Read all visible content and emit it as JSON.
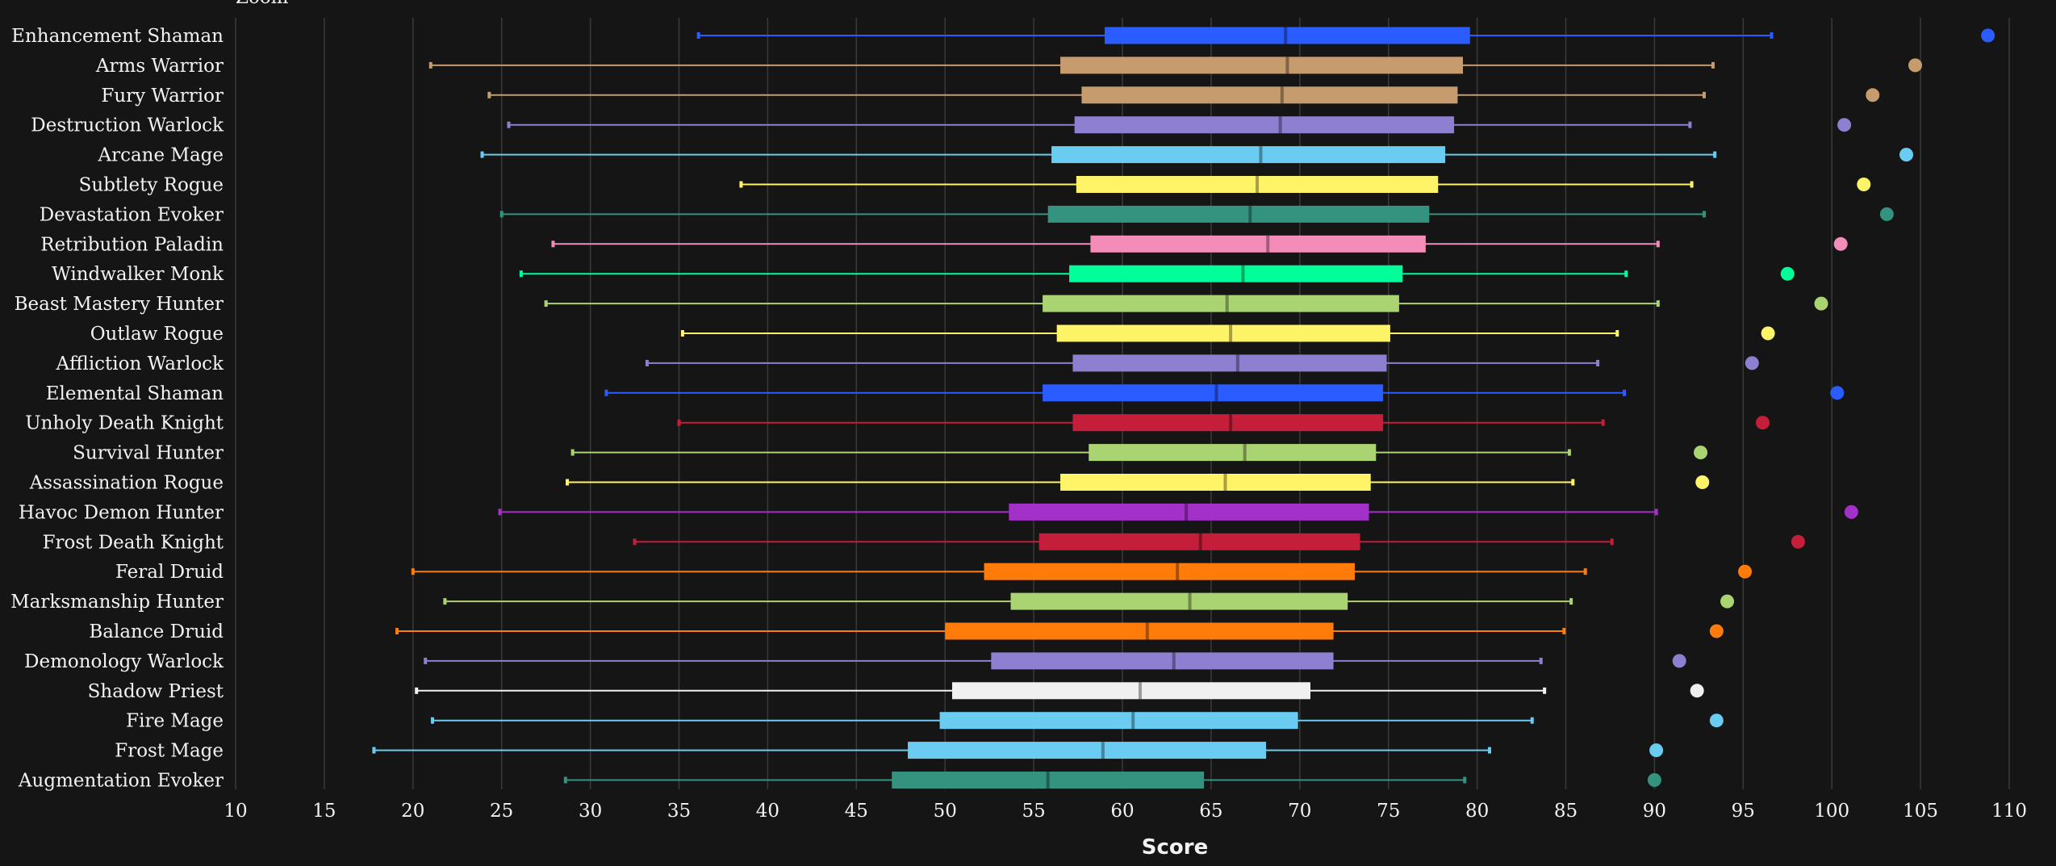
{
  "chart_data": {
    "type": "box",
    "xlabel": "Score",
    "xlim": [
      10,
      111
    ],
    "x_ticks": [
      10,
      15,
      20,
      25,
      30,
      35,
      40,
      45,
      50,
      55,
      60,
      65,
      70,
      75,
      80,
      85,
      90,
      95,
      100,
      105,
      110
    ],
    "grid": "vertical",
    "top_clipped_text": "Zoom",
    "series": [
      {
        "name": "Enhancement Shaman",
        "color": "#2a5cff",
        "min": 36.1,
        "q1": 59.0,
        "median": 69.2,
        "q3": 79.6,
        "max": 96.6,
        "outlier": 108.8
      },
      {
        "name": "Arms Warrior",
        "color": "#c69b6d",
        "min": 21.0,
        "q1": 56.5,
        "median": 69.3,
        "q3": 79.2,
        "max": 93.3,
        "outlier": 104.7
      },
      {
        "name": "Fury Warrior",
        "color": "#c69b6d",
        "min": 24.3,
        "q1": 57.7,
        "median": 69.0,
        "q3": 78.9,
        "max": 92.8,
        "outlier": 102.3
      },
      {
        "name": "Destruction Warlock",
        "color": "#8f7fd0",
        "min": 25.4,
        "q1": 57.3,
        "median": 68.9,
        "q3": 78.7,
        "max": 92.0,
        "outlier": 100.7
      },
      {
        "name": "Arcane Mage",
        "color": "#69ccf0",
        "min": 23.9,
        "q1": 56.0,
        "median": 67.8,
        "q3": 78.2,
        "max": 93.4,
        "outlier": 104.2
      },
      {
        "name": "Subtlety Rogue",
        "color": "#fff468",
        "min": 38.5,
        "q1": 57.4,
        "median": 67.6,
        "q3": 77.8,
        "max": 92.1,
        "outlier": 101.8
      },
      {
        "name": "Devastation Evoker",
        "color": "#33937f",
        "min": 25.0,
        "q1": 55.8,
        "median": 67.2,
        "q3": 77.3,
        "max": 92.8,
        "outlier": 103.1
      },
      {
        "name": "Retribution Paladin",
        "color": "#f48cba",
        "min": 27.9,
        "q1": 58.2,
        "median": 68.2,
        "q3": 77.1,
        "max": 90.2,
        "outlier": 100.5
      },
      {
        "name": "Windwalker Monk",
        "color": "#00ff98",
        "min": 26.1,
        "q1": 57.0,
        "median": 66.8,
        "q3": 75.8,
        "max": 88.4,
        "outlier": 97.5
      },
      {
        "name": "Beast Mastery Hunter",
        "color": "#aad372",
        "min": 27.5,
        "q1": 55.5,
        "median": 65.9,
        "q3": 75.6,
        "max": 90.2,
        "outlier": 99.4
      },
      {
        "name": "Outlaw Rogue",
        "color": "#fff468",
        "min": 35.2,
        "q1": 56.3,
        "median": 66.1,
        "q3": 75.1,
        "max": 87.9,
        "outlier": 96.4
      },
      {
        "name": "Affliction Warlock",
        "color": "#8f7fd0",
        "min": 33.2,
        "q1": 57.2,
        "median": 66.5,
        "q3": 74.9,
        "max": 86.8,
        "outlier": 95.5
      },
      {
        "name": "Elemental Shaman",
        "color": "#2a5cff",
        "min": 30.9,
        "q1": 55.5,
        "median": 65.3,
        "q3": 74.7,
        "max": 88.3,
        "outlier": 100.3
      },
      {
        "name": "Unholy Death Knight",
        "color": "#c41e3a",
        "min": 35.0,
        "q1": 57.2,
        "median": 66.1,
        "q3": 74.7,
        "max": 87.1,
        "outlier": 96.1
      },
      {
        "name": "Survival Hunter",
        "color": "#aad372",
        "min": 29.0,
        "q1": 58.1,
        "median": 66.9,
        "q3": 74.3,
        "max": 85.2,
        "outlier": 92.6
      },
      {
        "name": "Assassination Rogue",
        "color": "#fff468",
        "min": 28.7,
        "q1": 56.5,
        "median": 65.8,
        "q3": 74.0,
        "max": 85.4,
        "outlier": 92.7
      },
      {
        "name": "Havoc Demon Hunter",
        "color": "#a330c9",
        "min": 24.9,
        "q1": 53.6,
        "median": 63.6,
        "q3": 73.9,
        "max": 90.1,
        "outlier": 101.1
      },
      {
        "name": "Frost Death Knight",
        "color": "#c41e3a",
        "min": 32.5,
        "q1": 55.3,
        "median": 64.4,
        "q3": 73.4,
        "max": 87.6,
        "outlier": 98.1
      },
      {
        "name": "Feral Druid",
        "color": "#ff7c0a",
        "min": 20.0,
        "q1": 52.2,
        "median": 63.1,
        "q3": 73.1,
        "max": 86.1,
        "outlier": 95.1
      },
      {
        "name": "Marksmanship Hunter",
        "color": "#aad372",
        "min": 21.8,
        "q1": 53.7,
        "median": 63.8,
        "q3": 72.7,
        "max": 85.3,
        "outlier": 94.1
      },
      {
        "name": "Balance Druid",
        "color": "#ff7c0a",
        "min": 19.1,
        "q1": 50.0,
        "median": 61.4,
        "q3": 71.9,
        "max": 84.9,
        "outlier": 93.5
      },
      {
        "name": "Demonology Warlock",
        "color": "#8f7fd0",
        "min": 20.7,
        "q1": 52.6,
        "median": 62.9,
        "q3": 71.9,
        "max": 83.6,
        "outlier": 91.4
      },
      {
        "name": "Shadow Priest",
        "color": "#f0f0f0",
        "min": 20.2,
        "q1": 50.4,
        "median": 61.0,
        "q3": 70.6,
        "max": 83.8,
        "outlier": 92.4
      },
      {
        "name": "Fire Mage",
        "color": "#69ccf0",
        "min": 21.1,
        "q1": 49.7,
        "median": 60.6,
        "q3": 69.9,
        "max": 83.1,
        "outlier": 93.5
      },
      {
        "name": "Frost Mage",
        "color": "#69ccf0",
        "min": 17.8,
        "q1": 47.9,
        "median": 58.9,
        "q3": 68.1,
        "max": 80.7,
        "outlier": 90.1
      },
      {
        "name": "Augmentation Evoker",
        "color": "#33937f",
        "min": 28.6,
        "q1": 47.0,
        "median": 55.8,
        "q3": 64.6,
        "max": 79.3,
        "outlier": 90.0
      }
    ]
  }
}
